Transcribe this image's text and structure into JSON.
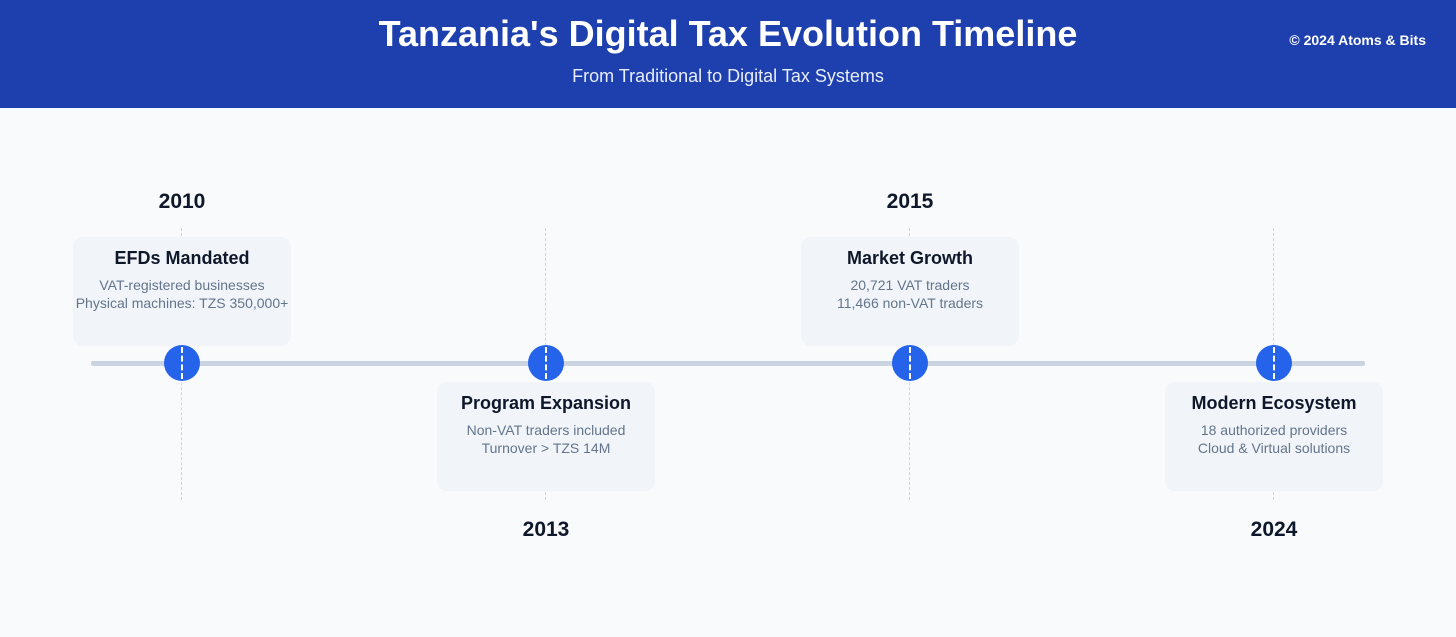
{
  "header": {
    "title": "Tanzania's Digital Tax Evolution Timeline",
    "subtitle": "From Traditional to Digital Tax Systems",
    "copyright": "© 2024 Atoms & Bits"
  },
  "colors": {
    "header_bg": "#1e40af",
    "node": "#2563eb",
    "axis": "#cbd5e1",
    "card_bg": "#f1f5f9",
    "page_bg": "#f8fafc"
  },
  "milestones": [
    {
      "year": "2010",
      "title": "EFDs Mandated",
      "lines": [
        "VAT-registered businesses",
        "Physical machines: TZS 350,000+"
      ]
    },
    {
      "year": "2013",
      "title": "Program Expansion",
      "lines": [
        "Non-VAT traders included",
        "Turnover > TZS 14M"
      ]
    },
    {
      "year": "2015",
      "title": "Market Growth",
      "lines": [
        "20,721 VAT traders",
        "11,466 non-VAT traders"
      ]
    },
    {
      "year": "2024",
      "title": "Modern Ecosystem",
      "lines": [
        "18 authorized providers",
        "Cloud & Virtual solutions"
      ]
    }
  ]
}
